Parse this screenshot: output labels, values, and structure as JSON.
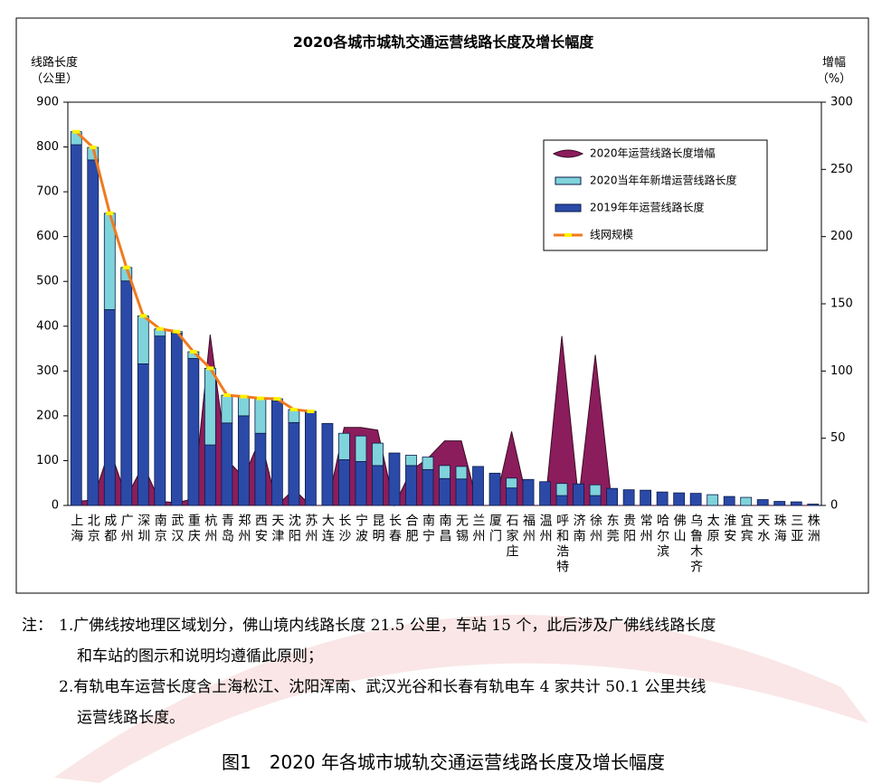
{
  "chart_data": {
    "type": "bar",
    "title": "2020各城市城轨交通运营线路长度及增长幅度",
    "y_label": "线路长度",
    "y_unit": "（公里）",
    "y2_label": "增幅",
    "y2_unit": "（%）",
    "ylim": [
      0,
      900
    ],
    "yticks": [
      0,
      100,
      200,
      300,
      400,
      500,
      600,
      700,
      800,
      900
    ],
    "y2lim": [
      0,
      300
    ],
    "y2ticks": [
      0,
      50,
      100,
      150,
      200,
      250,
      300
    ],
    "categories": [
      "上海",
      "北京",
      "成都",
      "广州",
      "深圳",
      "南京",
      "武汉",
      "重庆",
      "杭州",
      "青岛",
      "郑州",
      "西安",
      "天津",
      "沈阳",
      "苏州",
      "大连",
      "长沙",
      "宁波",
      "昆明",
      "长春",
      "合肥",
      "南宁",
      "南昌",
      "无锡",
      "兰州",
      "厦门",
      "石家庄",
      "福州",
      "温州",
      "呼和浩特",
      "济南",
      "徐州",
      "东莞",
      "贵阳",
      "常州",
      "哈尔滨",
      "佛山",
      "乌鲁木齐",
      "太原",
      "淮安",
      "宜宾",
      "天水",
      "珠海",
      "三亚",
      "株洲"
    ],
    "series": [
      {
        "name": "2020年运营线路长度增幅",
        "type": "area",
        "axis": "y2",
        "color": "#8c1d5c",
        "values": [
          3,
          4,
          42,
          6,
          30,
          3,
          2,
          5,
          127,
          34,
          21,
          50,
          0,
          12,
          0,
          0,
          58,
          58,
          56,
          0,
          26,
          35,
          48,
          48,
          0,
          0,
          55,
          0,
          0,
          126,
          4,
          112,
          0,
          0,
          0,
          0,
          0,
          0,
          0,
          0,
          0,
          0,
          0,
          0,
          0
        ]
      },
      {
        "name": "2020当年年新增运营线路长度",
        "type": "bar",
        "color": "#7fd3da",
        "values": [
          29,
          28,
          215,
          30,
          107,
          16,
          4,
          15,
          171,
          62,
          43,
          78,
          5,
          29,
          0,
          0,
          59,
          57,
          50,
          0,
          23,
          28,
          29,
          28,
          0,
          0,
          22,
          0,
          0,
          27,
          0,
          24,
          0,
          0,
          0,
          0,
          0,
          0,
          24,
          0,
          18,
          0,
          0,
          0,
          0
        ]
      },
      {
        "name": "2019年年运营线路长度",
        "type": "bar",
        "color": "#2b4aa8",
        "values": [
          805,
          771,
          437,
          501,
          316,
          378,
          384,
          328,
          135,
          184,
          200,
          161,
          233,
          185,
          210,
          183,
          102,
          98,
          89,
          117,
          89,
          80,
          60,
          59,
          87,
          72,
          39,
          58,
          53,
          22,
          48,
          22,
          38,
          35,
          34,
          30,
          28,
          27,
          0,
          20,
          0,
          13,
          9,
          8,
          3
        ]
      },
      {
        "name": "线网规模",
        "type": "line",
        "color": "#f07a1e",
        "marker_color": "#fff200",
        "values": [
          834,
          799,
          652,
          531,
          423,
          394,
          388,
          343,
          306,
          246,
          243,
          239,
          238,
          214,
          210,
          null,
          null,
          null,
          null,
          null,
          null,
          null,
          null,
          null,
          null,
          null,
          null,
          null,
          null,
          null,
          null,
          null,
          null,
          null,
          null,
          null,
          null,
          null,
          null,
          null,
          null,
          null,
          null,
          null,
          null
        ]
      }
    ]
  },
  "notes_label": "注：",
  "notes": [
    "1.广佛线按地理区域划分，佛山境内线路长度 21.5 公里，车站 15 个，此后涉及广佛线线路长度",
    "和车站的图示和说明均遵循此原则；",
    "2.有轨电车运营长度含上海松江、沈阳浑南、武汉光谷和长春有轨电车 4 家共计 50.1 公里共线",
    "运营线路长度。"
  ],
  "caption": "图1　2020 年各城市城轨交通运营线路长度及增长幅度"
}
